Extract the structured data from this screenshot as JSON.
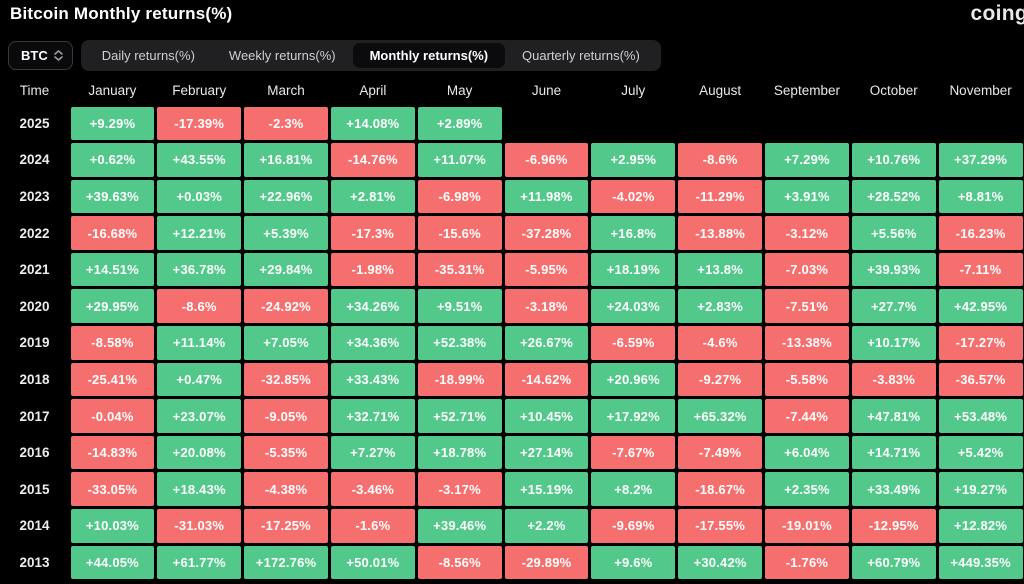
{
  "page": {
    "title": "Bitcoin Monthly returns(%)",
    "logo_text": "coing"
  },
  "controls": {
    "symbol_selector": {
      "value": "BTC",
      "icon": "up-down-chevrons"
    },
    "tabs": [
      {
        "label": "Daily returns(%)",
        "active": false
      },
      {
        "label": "Weekly returns(%)",
        "active": false
      },
      {
        "label": "Monthly returns(%)",
        "active": true
      },
      {
        "label": "Quarterly returns(%)",
        "active": false
      }
    ]
  },
  "colors": {
    "positive": "#52C98B",
    "negative": "#F66F6F",
    "background": "#000000"
  },
  "chart_data": {
    "type": "heatmap",
    "title": "Bitcoin Monthly returns(%)",
    "columns": [
      "Time",
      "January",
      "February",
      "March",
      "April",
      "May",
      "June",
      "July",
      "August",
      "September",
      "October",
      "November"
    ],
    "rows": [
      {
        "year": "2025",
        "values": [
          "+9.29%",
          "-17.39%",
          "-2.3%",
          "+14.08%",
          "+2.89%",
          null,
          null,
          null,
          null,
          null,
          null
        ]
      },
      {
        "year": "2024",
        "values": [
          "+0.62%",
          "+43.55%",
          "+16.81%",
          "-14.76%",
          "+11.07%",
          "-6.96%",
          "+2.95%",
          "-8.6%",
          "+7.29%",
          "+10.76%",
          "+37.29%"
        ]
      },
      {
        "year": "2023",
        "values": [
          "+39.63%",
          "+0.03%",
          "+22.96%",
          "+2.81%",
          "-6.98%",
          "+11.98%",
          "-4.02%",
          "-11.29%",
          "+3.91%",
          "+28.52%",
          "+8.81%"
        ]
      },
      {
        "year": "2022",
        "values": [
          "-16.68%",
          "+12.21%",
          "+5.39%",
          "-17.3%",
          "-15.6%",
          "-37.28%",
          "+16.8%",
          "-13.88%",
          "-3.12%",
          "+5.56%",
          "-16.23%"
        ]
      },
      {
        "year": "2021",
        "values": [
          "+14.51%",
          "+36.78%",
          "+29.84%",
          "-1.98%",
          "-35.31%",
          "-5.95%",
          "+18.19%",
          "+13.8%",
          "-7.03%",
          "+39.93%",
          "-7.11%"
        ]
      },
      {
        "year": "2020",
        "values": [
          "+29.95%",
          "-8.6%",
          "-24.92%",
          "+34.26%",
          "+9.51%",
          "-3.18%",
          "+24.03%",
          "+2.83%",
          "-7.51%",
          "+27.7%",
          "+42.95%"
        ]
      },
      {
        "year": "2019",
        "values": [
          "-8.58%",
          "+11.14%",
          "+7.05%",
          "+34.36%",
          "+52.38%",
          "+26.67%",
          "-6.59%",
          "-4.6%",
          "-13.38%",
          "+10.17%",
          "-17.27%"
        ]
      },
      {
        "year": "2018",
        "values": [
          "-25.41%",
          "+0.47%",
          "-32.85%",
          "+33.43%",
          "-18.99%",
          "-14.62%",
          "+20.96%",
          "-9.27%",
          "-5.58%",
          "-3.83%",
          "-36.57%"
        ]
      },
      {
        "year": "2017",
        "values": [
          "-0.04%",
          "+23.07%",
          "-9.05%",
          "+32.71%",
          "+52.71%",
          "+10.45%",
          "+17.92%",
          "+65.32%",
          "-7.44%",
          "+47.81%",
          "+53.48%"
        ]
      },
      {
        "year": "2016",
        "values": [
          "-14.83%",
          "+20.08%",
          "-5.35%",
          "+7.27%",
          "+18.78%",
          "+27.14%",
          "-7.67%",
          "-7.49%",
          "+6.04%",
          "+14.71%",
          "+5.42%"
        ]
      },
      {
        "year": "2015",
        "values": [
          "-33.05%",
          "+18.43%",
          "-4.38%",
          "-3.46%",
          "-3.17%",
          "+15.19%",
          "+8.2%",
          "-18.67%",
          "+2.35%",
          "+33.49%",
          "+19.27%"
        ]
      },
      {
        "year": "2014",
        "values": [
          "+10.03%",
          "-31.03%",
          "-17.25%",
          "-1.6%",
          "+39.46%",
          "+2.2%",
          "-9.69%",
          "-17.55%",
          "-19.01%",
          "-12.95%",
          "+12.82%"
        ]
      },
      {
        "year": "2013",
        "values": [
          "+44.05%",
          "+61.77%",
          "+172.76%",
          "+50.01%",
          "-8.56%",
          "-29.89%",
          "+9.6%",
          "+30.42%",
          "-1.76%",
          "+60.79%",
          "+449.35%"
        ]
      }
    ]
  }
}
